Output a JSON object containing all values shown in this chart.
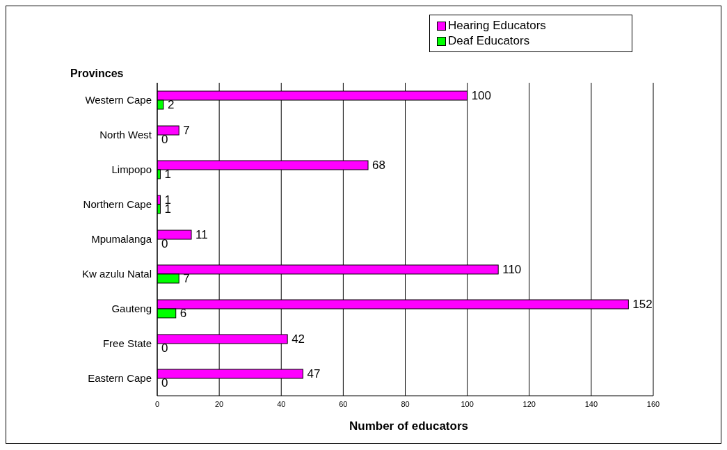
{
  "chart_data": {
    "type": "bar",
    "orientation": "horizontal",
    "ylabel": "Provinces",
    "xlabel": "Number of educators",
    "categories": [
      "Western Cape",
      "North West",
      "Limpopo",
      "Northern Cape",
      "Mpumalanga",
      "Kw azulu Natal",
      "Gauteng",
      "Free State",
      "Eastern Cape"
    ],
    "series": [
      {
        "name": "Hearing Educators",
        "color": "#ff00ff",
        "values": [
          100,
          7,
          68,
          1,
          11,
          110,
          152,
          42,
          47
        ]
      },
      {
        "name": "Deaf Educators",
        "color": "#00ff00",
        "values": [
          2,
          0,
          1,
          1,
          0,
          7,
          6,
          0,
          0
        ]
      }
    ],
    "xlim": [
      0,
      160
    ],
    "xticks": [
      0,
      20,
      40,
      60,
      80,
      100,
      120,
      140,
      160
    ],
    "grid": "x",
    "legend": "top right",
    "data_labels": true
  }
}
